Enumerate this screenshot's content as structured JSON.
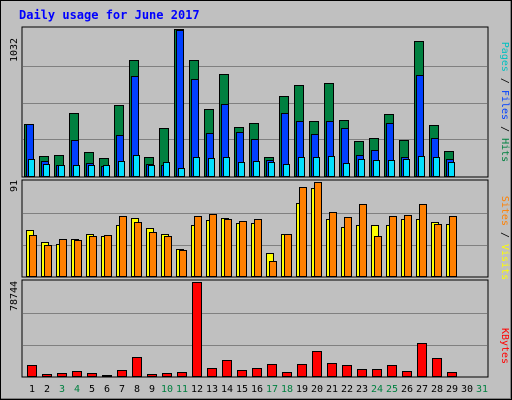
{
  "title": "Daily usage for June 2017",
  "colors": {
    "background": "#c0c0c0",
    "title_text": "#0000ff",
    "hits": "#008040",
    "files": "#0040ff",
    "pages": "#00e0ff",
    "visits": "#ffff00",
    "sites": "#ff8000",
    "kbytes": "#ff0000",
    "weekend_day": "#008040",
    "weekday_day": "#000000"
  },
  "legends": {
    "top": [
      {
        "text": "Pages",
        "color": "#00c0c0"
      },
      {
        "text": " / ",
        "color": "#000000"
      },
      {
        "text": "Files",
        "color": "#0040ff"
      },
      {
        "text": " / ",
        "color": "#000000"
      },
      {
        "text": "Hits",
        "color": "#008040"
      }
    ],
    "middle": [
      {
        "text": "Sites",
        "color": "#ff8000"
      },
      {
        "text": " / ",
        "color": "#000000"
      },
      {
        "text": "Visits",
        "color": "#ffff00"
      }
    ],
    "bottom": [
      {
        "text": "KBytes",
        "color": "#ff0000"
      }
    ]
  },
  "chart_data": [
    {
      "type": "bar",
      "panel": "top",
      "ylabel_max": "1032",
      "ylim": [
        0,
        1032
      ],
      "categories": [
        "1",
        "2",
        "3",
        "4",
        "5",
        "6",
        "7",
        "8",
        "9",
        "10",
        "11",
        "12",
        "13",
        "14",
        "15",
        "16",
        "17",
        "18",
        "19",
        "20",
        "21",
        "22",
        "23",
        "24",
        "25",
        "26",
        "27",
        "28",
        "29",
        "30",
        "31"
      ],
      "weekend": [
        false,
        false,
        true,
        true,
        false,
        false,
        false,
        false,
        false,
        true,
        true,
        false,
        false,
        false,
        false,
        false,
        true,
        true,
        false,
        false,
        false,
        false,
        false,
        true,
        true,
        false,
        false,
        false,
        false,
        false,
        true
      ],
      "series": [
        {
          "name": "Hits",
          "values": [
            365,
            140,
            150,
            440,
            170,
            125,
            495,
            815,
            135,
            340,
            1032,
            815,
            470,
            715,
            345,
            375,
            130,
            560,
            640,
            385,
            655,
            395,
            245,
            265,
            435,
            255,
            945,
            360,
            175,
            0,
            0
          ]
        },
        {
          "name": "Files",
          "values": [
            365,
            105,
            80,
            250,
            90,
            70,
            285,
            700,
            85,
            80,
            1025,
            680,
            300,
            505,
            310,
            260,
            110,
            440,
            385,
            295,
            385,
            340,
            150,
            185,
            375,
            130,
            710,
            265,
            120,
            0,
            0
          ]
        },
        {
          "name": "Pages",
          "values": [
            120,
            85,
            75,
            80,
            80,
            75,
            105,
            150,
            80,
            95,
            55,
            130,
            125,
            135,
            100,
            105,
            95,
            85,
            130,
            135,
            140,
            90,
            120,
            115,
            115,
            120,
            140,
            130,
            100,
            0,
            0
          ]
        }
      ]
    },
    {
      "type": "bar",
      "panel": "middle",
      "ylabel_max": "91",
      "ylim": [
        0,
        91
      ],
      "categories": [
        "1",
        "2",
        "3",
        "4",
        "5",
        "6",
        "7",
        "8",
        "9",
        "10",
        "11",
        "12",
        "13",
        "14",
        "15",
        "16",
        "17",
        "18",
        "19",
        "20",
        "21",
        "22",
        "23",
        "24",
        "25",
        "26",
        "27",
        "28",
        "29",
        "30",
        "31"
      ],
      "series": [
        {
          "name": "Visits",
          "values": [
            45,
            33,
            31,
            36,
            41,
            39,
            49,
            56,
            46,
            41,
            26,
            49,
            54,
            56,
            51,
            51,
            22,
            41,
            71,
            85,
            55,
            47,
            49,
            49,
            49,
            55,
            55,
            52,
            50,
            0,
            0
          ]
        },
        {
          "name": "Sites",
          "values": [
            40,
            30,
            36,
            35,
            39,
            40,
            58,
            52,
            43,
            39,
            25,
            58,
            60,
            55,
            53,
            55,
            15,
            41,
            86,
            91,
            62,
            57,
            70,
            39,
            58,
            59,
            70,
            50,
            58,
            0,
            0
          ]
        }
      ]
    },
    {
      "type": "bar",
      "panel": "bottom",
      "ylabel_max": "78744",
      "ylim": [
        0,
        78744
      ],
      "categories": [
        "1",
        "2",
        "3",
        "4",
        "5",
        "6",
        "7",
        "8",
        "9",
        "10",
        "11",
        "12",
        "13",
        "14",
        "15",
        "16",
        "17",
        "18",
        "19",
        "20",
        "21",
        "22",
        "23",
        "24",
        "25",
        "26",
        "27",
        "28",
        "29",
        "30",
        "31"
      ],
      "series": [
        {
          "name": "KBytes",
          "values": [
            9000,
            2000,
            2500,
            4500,
            2300,
            1000,
            5000,
            16000,
            1800,
            2500,
            3200,
            78744,
            6500,
            13500,
            5000,
            6500,
            10000,
            3500,
            10000,
            21000,
            10500,
            9000,
            6000,
            6000,
            9000,
            4500,
            28000,
            15000,
            3000,
            0,
            0
          ]
        }
      ]
    }
  ]
}
